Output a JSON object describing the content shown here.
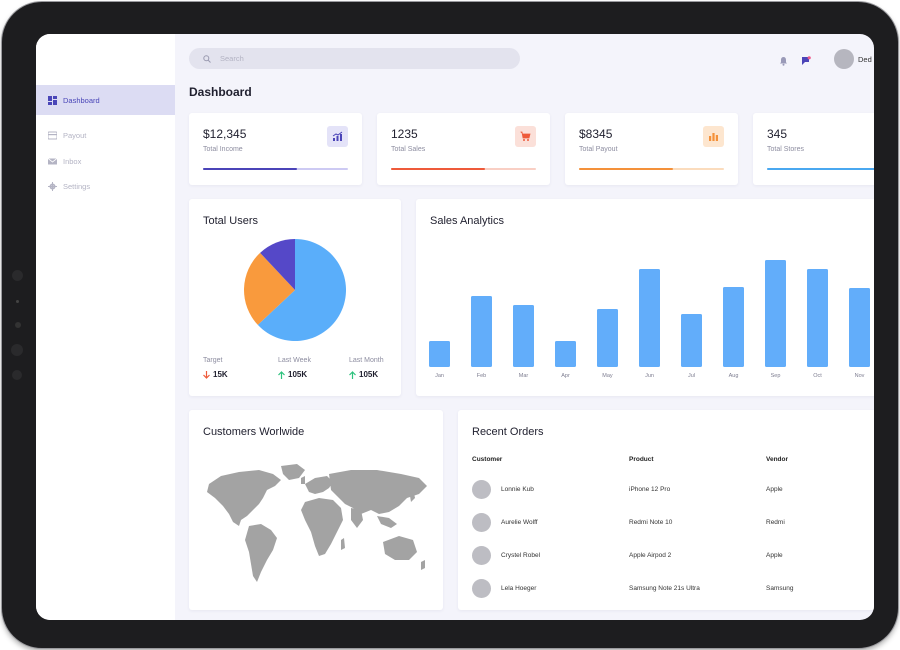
{
  "sidebar": {
    "items": [
      {
        "label": "Dashboard",
        "icon": "dashboard-icon",
        "active": true
      },
      {
        "label": "Payout",
        "icon": "credit-card-icon",
        "active": false
      },
      {
        "label": "Inbox",
        "icon": "mail-icon",
        "active": false
      },
      {
        "label": "Settings",
        "icon": "gear-icon",
        "active": false
      }
    ]
  },
  "header": {
    "search_placeholder": "Search",
    "user_name": "Ded",
    "icons": [
      "bell-icon",
      "notification-flag-icon"
    ]
  },
  "page_title": "Dashboard",
  "stats": [
    {
      "value": "$12,345",
      "label": "Total Income",
      "icon": "trending-up-chart-icon",
      "accent": "#4b44b8",
      "progress": 0.65
    },
    {
      "value": "1235",
      "label": "Total Sales",
      "icon": "cart-icon",
      "accent": "#ee5a3a",
      "progress": 0.65
    },
    {
      "value": "$8345",
      "label": "Total Payout",
      "icon": "bar-chart-icon",
      "accent": "#f4913a",
      "progress": 0.65
    },
    {
      "value": "345",
      "label": "Total Stores",
      "icon": "store-icon",
      "accent": "#4aa8f0",
      "progress": 0.9
    }
  ],
  "total_users": {
    "title": "Total Users",
    "legend": [
      {
        "label": "Target",
        "value": "15K",
        "trend": "down",
        "color": "#ee5a3a"
      },
      {
        "label": "Last Week",
        "value": "105K",
        "trend": "up",
        "color": "#2ec27e"
      },
      {
        "label": "Last Month",
        "value": "105K",
        "trend": "up",
        "color": "#2ec27e"
      }
    ]
  },
  "sales_analytics": {
    "title": "Sales Analytics"
  },
  "chart_data": [
    {
      "type": "pie",
      "categories": [
        "",
        "",
        ""
      ],
      "values": [
        63,
        25,
        12
      ],
      "colors": [
        "#5aaefa",
        "#f99a3d",
        "#5548c8"
      ]
    },
    {
      "type": "bar",
      "categories": [
        "Jan",
        "Feb",
        "Mar",
        "Apr",
        "May",
        "Jun",
        "Jul",
        "Aug",
        "Sep",
        "Oct",
        "Nov"
      ],
      "values": [
        26,
        71,
        62,
        26,
        58,
        98,
        53,
        80,
        107,
        98,
        79
      ],
      "ylim": [
        0,
        120
      ],
      "color": "#62adfa",
      "grid": false
    }
  ],
  "customers_worldwide": {
    "title": "Customers Worlwide"
  },
  "recent_orders": {
    "title": "Recent Orders",
    "columns": [
      "Customer",
      "Product",
      "Vendor"
    ],
    "rows": [
      {
        "customer": "Lonnie Kub",
        "product": "iPhone 12 Pro",
        "vendor": "Apple"
      },
      {
        "customer": "Aurelie Wolff",
        "product": "Redmi Note 10",
        "vendor": "Redmi"
      },
      {
        "customer": "Crystel Robel",
        "product": "Apple Airpod 2",
        "vendor": "Apple"
      },
      {
        "customer": "Lela Hoeger",
        "product": "Samsung Note 21s Ultra",
        "vendor": "Samsung"
      }
    ]
  }
}
